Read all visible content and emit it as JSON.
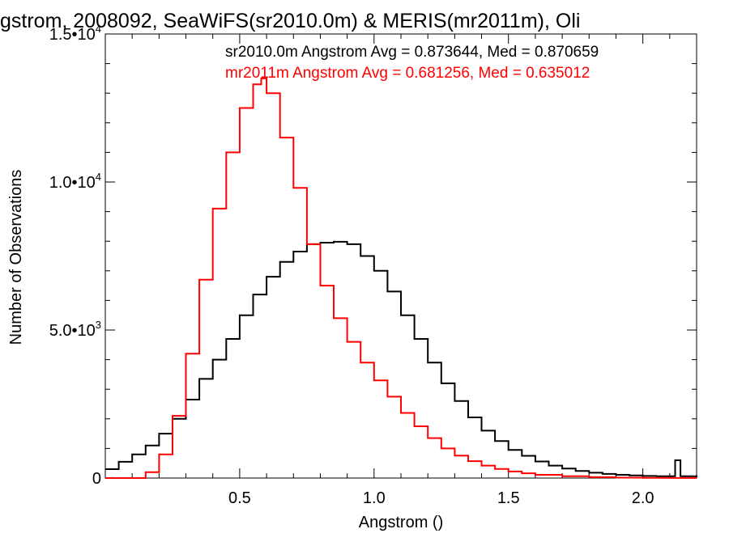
{
  "chart_data": {
    "type": "line",
    "title": "gstrom, 2008092, SeaWiFS(sr2010.0m) & MERIS(mr2011m), Oli",
    "xlabel": "Angstrom ()",
    "ylabel": "Number of Observations",
    "xlim": [
      0.0,
      2.2
    ],
    "ylim": [
      0,
      15000
    ],
    "grid": false,
    "legend_position": "top-right",
    "x_ticks": [
      {
        "value": 0.5,
        "label": "0.5"
      },
      {
        "value": 1.0,
        "label": "1.0"
      },
      {
        "value": 1.5,
        "label": "1.5"
      },
      {
        "value": 2.0,
        "label": "2.0"
      }
    ],
    "y_ticks": [
      {
        "value": 0,
        "label": "0"
      },
      {
        "value": 5000,
        "mant": "5.0•10",
        "exp": "3"
      },
      {
        "value": 10000,
        "mant": "1.0•10",
        "exp": "4"
      },
      {
        "value": 15000,
        "mant": "1.5•10",
        "exp": "4"
      }
    ],
    "series": [
      {
        "name": "sr2010.0m",
        "label": "sr2010.0m Angstrom Avg = 0.873644, Med = 0.870659",
        "color": "#000000",
        "x": [
          0.0,
          0.05,
          0.1,
          0.15,
          0.2,
          0.25,
          0.3,
          0.35,
          0.4,
          0.45,
          0.5,
          0.55,
          0.6,
          0.65,
          0.7,
          0.75,
          0.8,
          0.85,
          0.9,
          0.95,
          1.0,
          1.05,
          1.1,
          1.15,
          1.2,
          1.25,
          1.3,
          1.35,
          1.4,
          1.45,
          1.5,
          1.55,
          1.6,
          1.65,
          1.7,
          1.75,
          1.8,
          1.85,
          1.9,
          1.95,
          2.0,
          2.05,
          2.1,
          2.12,
          2.13,
          2.14,
          2.2
        ],
        "y": [
          300,
          550,
          800,
          1100,
          1500,
          2000,
          2650,
          3350,
          4000,
          4700,
          5500,
          6200,
          6800,
          7300,
          7650,
          7900,
          7950,
          7980,
          7900,
          7500,
          7000,
          6300,
          5500,
          4700,
          3900,
          3200,
          2600,
          2050,
          1600,
          1250,
          950,
          750,
          560,
          420,
          320,
          240,
          180,
          140,
          110,
          90,
          70,
          60,
          60,
          600,
          600,
          60,
          30
        ]
      },
      {
        "name": "mr2011m",
        "label": "mr2011m Angstrom Avg = 0.681256, Med = 0.635012",
        "color": "#ff0000",
        "x": [
          0.0,
          0.1,
          0.15,
          0.2,
          0.25,
          0.3,
          0.35,
          0.4,
          0.45,
          0.5,
          0.55,
          0.58,
          0.6,
          0.65,
          0.7,
          0.75,
          0.8,
          0.85,
          0.9,
          0.95,
          1.0,
          1.05,
          1.1,
          1.15,
          1.2,
          1.25,
          1.3,
          1.35,
          1.4,
          1.45,
          1.5,
          1.55,
          1.6,
          1.7,
          1.8,
          1.9,
          2.0,
          2.1,
          2.2
        ],
        "y": [
          0,
          0,
          200,
          800,
          2100,
          4200,
          6700,
          9100,
          11000,
          12500,
          13300,
          13500,
          13000,
          11500,
          9800,
          7900,
          6500,
          5400,
          4600,
          3900,
          3300,
          2750,
          2200,
          1750,
          1350,
          1000,
          760,
          570,
          420,
          310,
          220,
          160,
          110,
          60,
          30,
          15,
          8,
          4,
          2
        ]
      }
    ]
  }
}
